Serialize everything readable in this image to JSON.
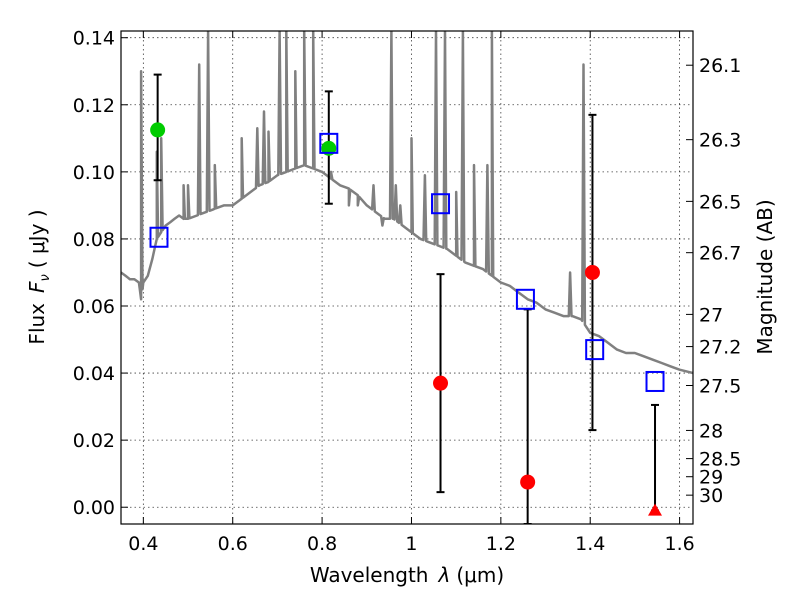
{
  "chart_data": {
    "type": "scatter",
    "xlabel_text": "Wavelength",
    "xlabel_symbol": "λ",
    "xlabel_unit": "(μm)",
    "ylabel_text": "Flux",
    "ylabel_symbol": "F",
    "ylabel_sub": "ν",
    "ylabel_unit": "( μJy )",
    "y2label": "Magnitude (AB)",
    "xlim": [
      0.35,
      1.63
    ],
    "ylim": [
      -0.005,
      0.142
    ],
    "grid": true,
    "x_ticks": [
      0.4,
      0.6,
      0.8,
      1.0,
      1.2,
      1.4,
      1.6
    ],
    "x_tick_labels": [
      "0.4",
      "0.6",
      "0.8",
      "1",
      "1.2",
      "1.4",
      "1.6"
    ],
    "y_ticks": [
      0.0,
      0.02,
      0.04,
      0.06,
      0.08,
      0.1,
      0.12,
      0.14
    ],
    "y_tick_labels": [
      "0.00",
      "0.02",
      "0.04",
      "0.06",
      "0.08",
      "0.10",
      "0.12",
      "0.14"
    ],
    "mag_ticks": [
      {
        "label": "26.1",
        "flux": 0.1318
      },
      {
        "label": "26.3",
        "flux": 0.1096
      },
      {
        "label": "26.5",
        "flux": 0.0912
      },
      {
        "label": "26.7",
        "flux": 0.0759
      },
      {
        "label": "27",
        "flux": 0.0575
      },
      {
        "label": "27.2",
        "flux": 0.0479
      },
      {
        "label": "27.5",
        "flux": 0.0363
      },
      {
        "label": "28",
        "flux": 0.0229
      },
      {
        "label": "28.5",
        "flux": 0.0145
      },
      {
        "label": "29",
        "flux": 0.0091
      },
      {
        "label": "30",
        "flux": 0.0036
      }
    ],
    "colors": {
      "model": "#808080",
      "green_points": "#00cc00",
      "red_points": "#ff0000",
      "squares": "#0000ff",
      "errorbars": "#000000"
    },
    "model_sed": {
      "continuum": [
        [
          0.35,
          0.07
        ],
        [
          0.36,
          0.069
        ],
        [
          0.37,
          0.068
        ],
        [
          0.38,
          0.068
        ],
        [
          0.39,
          0.067
        ],
        [
          0.395,
          0.062
        ],
        [
          0.4,
          0.067
        ],
        [
          0.41,
          0.069
        ],
        [
          0.42,
          0.074
        ],
        [
          0.43,
          0.08
        ],
        [
          0.44,
          0.082
        ],
        [
          0.45,
          0.084
        ],
        [
          0.46,
          0.085
        ],
        [
          0.47,
          0.086
        ],
        [
          0.48,
          0.087
        ],
        [
          0.49,
          0.086
        ],
        [
          0.5,
          0.086
        ],
        [
          0.52,
          0.087
        ],
        [
          0.54,
          0.088
        ],
        [
          0.56,
          0.089
        ],
        [
          0.58,
          0.09
        ],
        [
          0.6,
          0.09
        ],
        [
          0.62,
          0.092
        ],
        [
          0.64,
          0.094
        ],
        [
          0.66,
          0.096
        ],
        [
          0.68,
          0.097
        ],
        [
          0.7,
          0.099
        ],
        [
          0.72,
          0.1
        ],
        [
          0.74,
          0.101
        ],
        [
          0.76,
          0.102
        ],
        [
          0.78,
          0.101
        ],
        [
          0.8,
          0.1
        ],
        [
          0.82,
          0.098
        ],
        [
          0.84,
          0.096
        ],
        [
          0.86,
          0.095
        ],
        [
          0.88,
          0.093
        ],
        [
          0.9,
          0.09
        ],
        [
          0.92,
          0.088
        ],
        [
          0.94,
          0.086
        ],
        [
          0.96,
          0.086
        ],
        [
          0.98,
          0.084
        ],
        [
          1.0,
          0.082
        ],
        [
          1.02,
          0.08
        ],
        [
          1.04,
          0.079
        ],
        [
          1.06,
          0.078
        ],
        [
          1.08,
          0.077
        ],
        [
          1.1,
          0.075
        ],
        [
          1.12,
          0.073
        ],
        [
          1.14,
          0.072
        ],
        [
          1.16,
          0.071
        ],
        [
          1.18,
          0.069
        ],
        [
          1.2,
          0.067
        ],
        [
          1.22,
          0.066
        ],
        [
          1.24,
          0.064
        ],
        [
          1.26,
          0.062
        ],
        [
          1.28,
          0.061
        ],
        [
          1.3,
          0.059
        ],
        [
          1.32,
          0.058
        ],
        [
          1.34,
          0.057
        ],
        [
          1.36,
          0.057
        ],
        [
          1.38,
          0.056
        ],
        [
          1.4,
          0.052
        ],
        [
          1.42,
          0.051
        ],
        [
          1.44,
          0.049
        ],
        [
          1.46,
          0.047
        ],
        [
          1.48,
          0.046
        ],
        [
          1.5,
          0.046
        ],
        [
          1.52,
          0.045
        ],
        [
          1.54,
          0.044
        ],
        [
          1.56,
          0.043
        ],
        [
          1.58,
          0.042
        ],
        [
          1.6,
          0.041
        ],
        [
          1.63,
          0.04
        ]
      ],
      "lines": [
        [
          0.395,
          0.13
        ],
        [
          0.43,
          0.106
        ],
        [
          0.44,
          0.11
        ],
        [
          0.49,
          0.096
        ],
        [
          0.5,
          0.096
        ],
        [
          0.525,
          0.132
        ],
        [
          0.545,
          0.142
        ],
        [
          0.56,
          0.102
        ],
        [
          0.62,
          0.11
        ],
        [
          0.655,
          0.113
        ],
        [
          0.67,
          0.118
        ],
        [
          0.68,
          0.112
        ],
        [
          0.705,
          0.142
        ],
        [
          0.72,
          0.142
        ],
        [
          0.74,
          0.13
        ],
        [
          0.76,
          0.142
        ],
        [
          0.78,
          0.142
        ],
        [
          0.82,
          0.1
        ],
        [
          0.86,
          0.09
        ],
        [
          0.88,
          0.09
        ],
        [
          0.915,
          0.096
        ],
        [
          0.935,
          0.084
        ],
        [
          0.955,
          0.142
        ],
        [
          0.965,
          0.096
        ],
        [
          0.975,
          0.09
        ],
        [
          1.0,
          0.11
        ],
        [
          1.03,
          0.099
        ],
        [
          1.055,
          0.142
        ],
        [
          1.075,
          0.142
        ],
        [
          1.1,
          0.094
        ],
        [
          1.115,
          0.142
        ],
        [
          1.14,
          0.102
        ],
        [
          1.17,
          0.102
        ],
        [
          1.18,
          0.142
        ],
        [
          1.355,
          0.07
        ],
        [
          1.385,
          0.132
        ]
      ]
    },
    "series": [
      {
        "marker": "circle",
        "color": "green",
        "points": [
          {
            "x": 0.432,
            "y": 0.1125,
            "yerr_low": 0.0975,
            "yerr_high": 0.129
          },
          {
            "x": 0.815,
            "y": 0.107,
            "yerr_low": 0.0905,
            "yerr_high": 0.124
          }
        ]
      },
      {
        "marker": "circle",
        "color": "red",
        "points": [
          {
            "x": 1.065,
            "y": 0.037,
            "yerr_low": 0.0045,
            "yerr_high": 0.0695
          },
          {
            "x": 1.26,
            "y": 0.0075,
            "yerr_low": -0.005,
            "yerr_high": 0.059
          },
          {
            "x": 1.405,
            "y": 0.07,
            "yerr_low": 0.023,
            "yerr_high": 0.117
          }
        ]
      },
      {
        "marker": "triangle",
        "color": "red",
        "points": [
          {
            "x": 1.545,
            "y": -0.001,
            "yerr_low": -0.001,
            "yerr_high": 0.0305
          }
        ]
      },
      {
        "marker": "square",
        "color": "blue",
        "points": [
          {
            "x": 0.435,
            "y": 0.0805
          },
          {
            "x": 0.815,
            "y": 0.1085
          },
          {
            "x": 1.065,
            "y": 0.0905
          },
          {
            "x": 1.255,
            "y": 0.062
          },
          {
            "x": 1.41,
            "y": 0.047
          },
          {
            "x": 1.545,
            "y": 0.0375
          }
        ]
      }
    ]
  }
}
